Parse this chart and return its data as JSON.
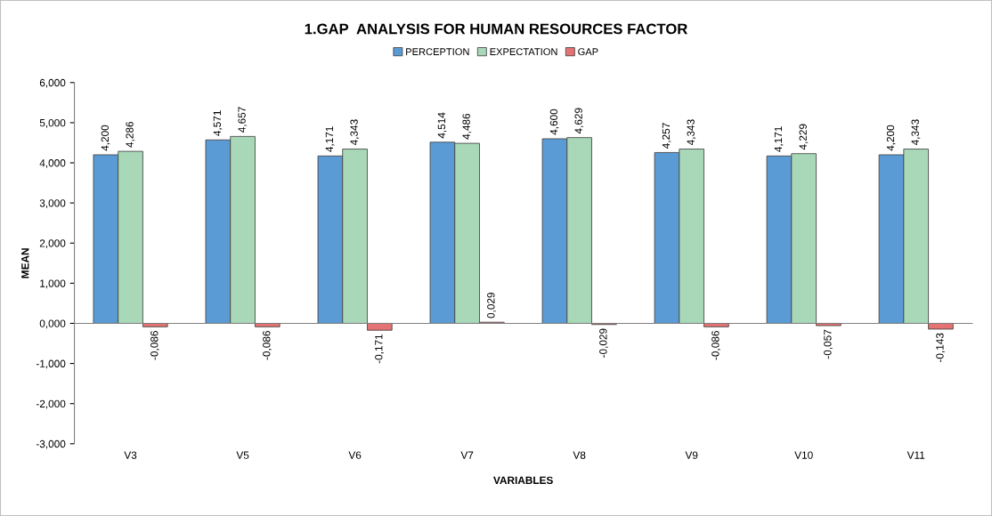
{
  "chart_data": {
    "type": "bar",
    "title": "1.GAP  ANALYSIS FOR HUMAN RESOURCES FACTOR",
    "xlabel": "VARIABLES",
    "ylabel": "MEAN",
    "categories": [
      "V3",
      "V5",
      "V6",
      "V7",
      "V8",
      "V9",
      "V10",
      "V11"
    ],
    "series": [
      {
        "name": "PERCEPTION",
        "color": "#5b9bd5",
        "values": [
          4.2,
          4.571,
          4.171,
          4.514,
          4.6,
          4.257,
          4.171,
          4.2
        ],
        "value_labels": [
          "4,200",
          "4,571",
          "4,171",
          "4,514",
          "4,600",
          "4,257",
          "4,171",
          "4,200"
        ]
      },
      {
        "name": "EXPECTATION",
        "color": "#a9d8b8",
        "values": [
          4.286,
          4.657,
          4.343,
          4.486,
          4.629,
          4.343,
          4.229,
          4.343
        ],
        "value_labels": [
          "4,286",
          "4,657",
          "4,343",
          "4,486",
          "4,629",
          "4,343",
          "4,229",
          "4,343"
        ]
      },
      {
        "name": "GAP",
        "color": "#e57373",
        "values": [
          -0.086,
          -0.086,
          -0.171,
          0.029,
          -0.029,
          -0.086,
          -0.057,
          -0.143
        ],
        "value_labels": [
          "-0,086",
          "-0,086",
          "-0,171",
          "0,029",
          "-0,029",
          "-0,086",
          "-0,057",
          "-0,143"
        ]
      }
    ],
    "ylim": [
      -3,
      6
    ],
    "yticks": [
      {
        "value": -3,
        "label": "-3,000"
      },
      {
        "value": -2,
        "label": "-2,000"
      },
      {
        "value": -1,
        "label": "-1,000"
      },
      {
        "value": 0,
        "label": "0,000"
      },
      {
        "value": 1,
        "label": "1,000"
      },
      {
        "value": 2,
        "label": "2,000"
      },
      {
        "value": 3,
        "label": "3,000"
      },
      {
        "value": 4,
        "label": "4,000"
      },
      {
        "value": 5,
        "label": "5,000"
      },
      {
        "value": 6,
        "label": "6,000"
      }
    ],
    "legend": "top"
  }
}
